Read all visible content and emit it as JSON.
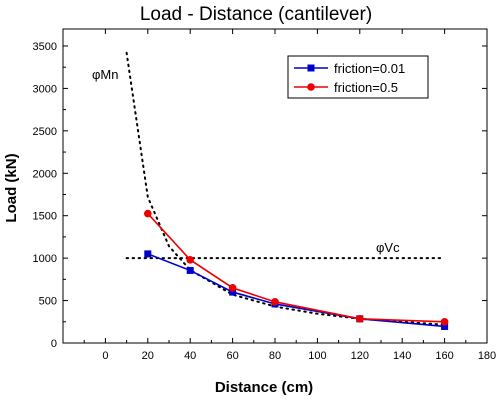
{
  "chart_data": {
    "type": "line",
    "title": "Load - Distance (cantilever)",
    "xlabel": "Distance (cm)",
    "ylabel": "Load (kN)",
    "xlim": [
      -20,
      180
    ],
    "ylim": [
      0,
      3700
    ],
    "xticks": [
      0,
      20,
      40,
      60,
      80,
      100,
      120,
      140,
      160,
      180
    ],
    "yticks": [
      0,
      500,
      1000,
      1500,
      2000,
      2500,
      3000,
      3500
    ],
    "grid": false,
    "legend_position": "top-right",
    "series": [
      {
        "name": "friction=0.01",
        "color": "#0000cc",
        "marker": "square",
        "x": [
          20,
          40,
          60,
          80,
          120,
          160
        ],
        "y": [
          1050,
          855,
          600,
          460,
          285,
          195
        ]
      },
      {
        "name": "friction=0.5",
        "color": "#ee0000",
        "marker": "circle",
        "x": [
          20,
          40,
          60,
          80,
          120,
          160
        ],
        "y": [
          1525,
          980,
          650,
          485,
          285,
          250
        ]
      }
    ],
    "reference_curves": [
      {
        "label": "φMn",
        "style": "dotted",
        "color": "#000000",
        "x": [
          10,
          20,
          30,
          40,
          60,
          80,
          100,
          120,
          160
        ],
        "y": [
          3420,
          1720,
          1140,
          860,
          570,
          430,
          345,
          285,
          215
        ]
      },
      {
        "label": "φVc",
        "style": "dotted",
        "color": "#000000",
        "x": [
          10,
          160
        ],
        "y": [
          1000,
          1000
        ]
      }
    ]
  }
}
